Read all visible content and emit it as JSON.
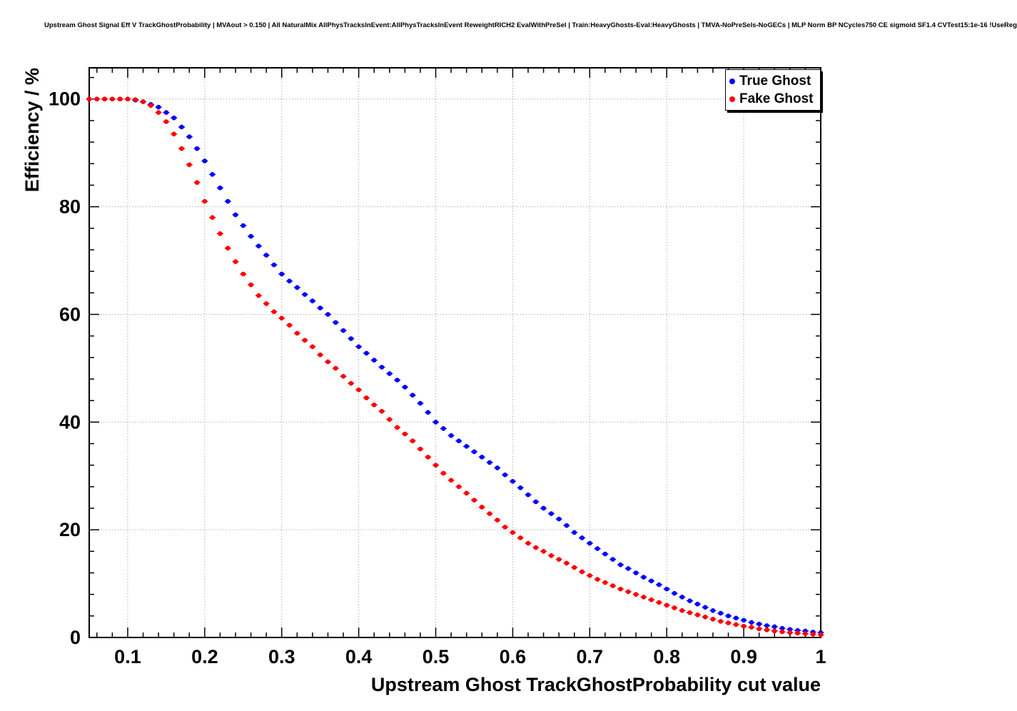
{
  "title": "Upstream Ghost Signal Eff V TrackGhostProbability | MVAout > 0.150 | All NaturalMix AllPhysTracksInEvent:AllPhysTracksInEvent ReweightRICH2 EvalWithPreSel | Train:HeavyGhosts-Eval:HeavyGhosts | TMVA-NoPreSels-NoGECs | MLP Norm BP NCycles750 CE sigmoid SF1.4 CVTest15:1e-16 !UseReg",
  "legend": {
    "entries": [
      {
        "label": "True Ghost",
        "color": "#0000ff"
      },
      {
        "label": "Fake Ghost",
        "color": "#ff0000"
      }
    ]
  },
  "chart_data": {
    "type": "scatter",
    "title": "Upstream Ghost Signal Eff V TrackGhostProbability",
    "xlabel": "Upstream Ghost TrackGhostProbability cut value",
    "ylabel": "Efficiency / %",
    "xlim": [
      0.05,
      1.0
    ],
    "ylim": [
      0,
      105.8
    ],
    "grid": true,
    "grid_color": "#999999",
    "legend_position": "top-right",
    "x_ticks": [
      0.1,
      0.2,
      0.3,
      0.4,
      0.5,
      0.6,
      0.7,
      0.8,
      0.9,
      1.0
    ],
    "x_tick_labels": [
      "0.1",
      "0.2",
      "0.3",
      "0.4",
      "0.5",
      "0.6",
      "0.7",
      "0.8",
      "0.9",
      "1"
    ],
    "y_ticks": [
      0,
      20,
      40,
      60,
      80,
      100
    ],
    "y_tick_labels": [
      "0",
      "20",
      "40",
      "60",
      "80",
      "100"
    ],
    "x": [
      0.05,
      0.06,
      0.07,
      0.08,
      0.09,
      0.1,
      0.11,
      0.12,
      0.13,
      0.14,
      0.15,
      0.16,
      0.17,
      0.18,
      0.19,
      0.2,
      0.21,
      0.22,
      0.23,
      0.24,
      0.25,
      0.26,
      0.27,
      0.28,
      0.29,
      0.3,
      0.31,
      0.32,
      0.33,
      0.34,
      0.35,
      0.36,
      0.37,
      0.38,
      0.39,
      0.4,
      0.41,
      0.42,
      0.43,
      0.44,
      0.45,
      0.46,
      0.47,
      0.48,
      0.49,
      0.5,
      0.51,
      0.52,
      0.53,
      0.54,
      0.55,
      0.56,
      0.57,
      0.58,
      0.59,
      0.6,
      0.61,
      0.62,
      0.63,
      0.64,
      0.65,
      0.66,
      0.67,
      0.68,
      0.69,
      0.7,
      0.71,
      0.72,
      0.73,
      0.74,
      0.75,
      0.76,
      0.77,
      0.78,
      0.79,
      0.8,
      0.81,
      0.82,
      0.83,
      0.84,
      0.85,
      0.86,
      0.87,
      0.88,
      0.89,
      0.9,
      0.91,
      0.92,
      0.93,
      0.94,
      0.95,
      0.96,
      0.97,
      0.98,
      0.99,
      1.0
    ],
    "series": [
      {
        "name": "True Ghost",
        "color": "#0000ff",
        "values": [
          100,
          100,
          100,
          100,
          100,
          100,
          99.8,
          99.5,
          99,
          98.5,
          97.5,
          96.5,
          94.8,
          93,
          90.8,
          88.5,
          86,
          83.5,
          81,
          78.5,
          76.5,
          74.5,
          72.7,
          71,
          69.2,
          67.5,
          66.2,
          65,
          63.7,
          62.5,
          61.2,
          60,
          58.5,
          57,
          55.5,
          54,
          52.8,
          51.5,
          50.2,
          49,
          47.8,
          46.5,
          45,
          43.5,
          41.8,
          40,
          38.8,
          37.5,
          36.5,
          35.5,
          34.5,
          33.5,
          32.5,
          31.5,
          30.2,
          29,
          27.8,
          26.5,
          25.2,
          24,
          23,
          22,
          20.8,
          19.5,
          18.5,
          17.5,
          16.5,
          15.5,
          14.5,
          13.5,
          12.8,
          12,
          11.2,
          10.5,
          9.8,
          9,
          8.2,
          7.5,
          6.8,
          6.2,
          5.6,
          5,
          4.5,
          4,
          3.6,
          3.2,
          2.8,
          2.5,
          2.2,
          2,
          1.7,
          1.5,
          1.3,
          1.2,
          1,
          0.9
        ]
      },
      {
        "name": "Fake Ghost",
        "color": "#ff0000",
        "values": [
          100,
          100,
          100,
          100,
          100,
          100,
          99.9,
          99.5,
          98.8,
          97.5,
          95.8,
          93.5,
          90.8,
          87.8,
          84.5,
          81,
          78,
          75,
          72.3,
          69.8,
          67.5,
          65.5,
          63.5,
          62,
          60.5,
          59.3,
          58,
          56.5,
          55.2,
          54,
          52.5,
          51.2,
          50,
          48.5,
          47.2,
          46,
          44.5,
          43.2,
          42,
          40.5,
          39,
          37.8,
          36.5,
          35,
          33.5,
          32,
          30.5,
          29.2,
          28,
          26.8,
          25.5,
          24.2,
          23,
          21.8,
          20.5,
          19.5,
          18.5,
          17.5,
          16.7,
          16,
          15.2,
          14.5,
          13.8,
          13,
          12.2,
          11.5,
          10.8,
          10.2,
          9.6,
          9,
          8.5,
          8,
          7.5,
          7,
          6.5,
          6,
          5.5,
          5,
          4.6,
          4.2,
          3.8,
          3.4,
          3,
          2.7,
          2.4,
          2.1,
          1.9,
          1.6,
          1.4,
          1.2,
          1.05,
          0.9,
          0.8,
          0.7,
          0.6,
          0.5
        ]
      }
    ]
  }
}
